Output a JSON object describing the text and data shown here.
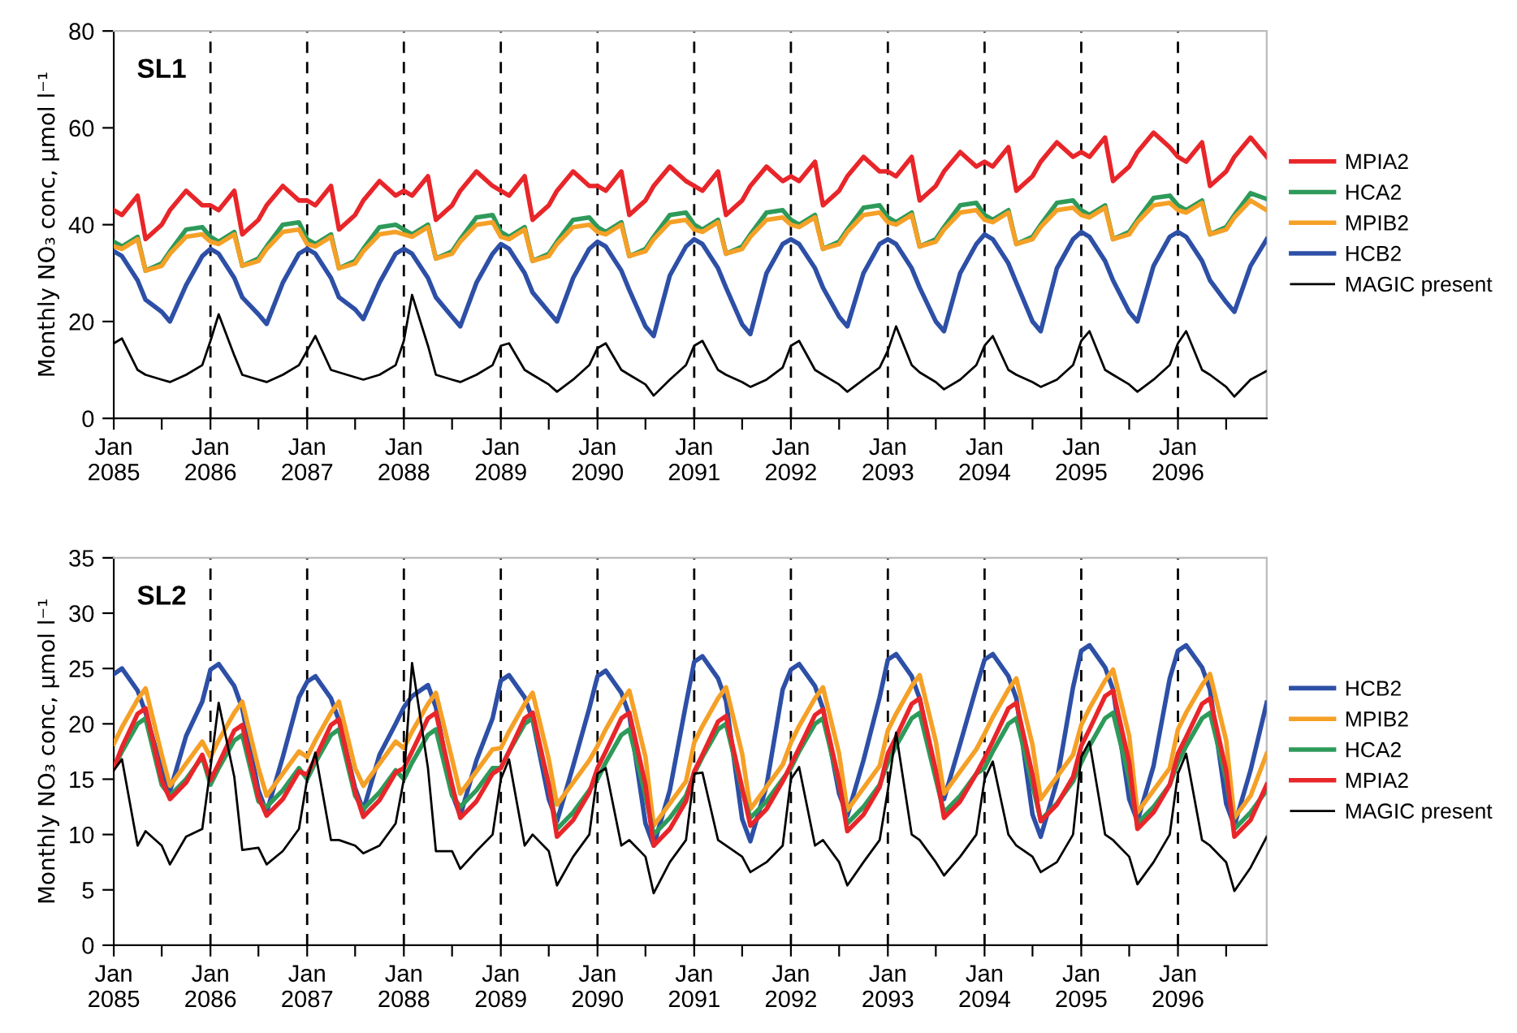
{
  "chart_data": [
    {
      "type": "line",
      "title": "SL1",
      "ylabel": "Monthly NO₃ conc, µmol l⁻¹",
      "legend": "right",
      "grid": false,
      "marker": "none",
      "line_style": "solid",
      "xlim": [
        "2085-01",
        "2096-12"
      ],
      "ylim": [
        0,
        80
      ],
      "yticks": [
        0,
        20,
        40,
        60,
        80
      ],
      "xticks": [
        {
          "value": "2085-01",
          "label": "Jan\n2085"
        },
        {
          "value": "2085-07",
          "label": null
        },
        {
          "value": "2086-01",
          "label": "Jan\n2086"
        },
        {
          "value": "2086-07",
          "label": null
        },
        {
          "value": "2087-01",
          "label": "Jan\n2087"
        },
        {
          "value": "2087-07",
          "label": null
        },
        {
          "value": "2088-01",
          "label": "Jan\n2088"
        },
        {
          "value": "2088-07",
          "label": null
        },
        {
          "value": "2089-01",
          "label": "Jan\n2089"
        },
        {
          "value": "2089-07",
          "label": null
        },
        {
          "value": "2090-01",
          "label": "Jan\n2090"
        },
        {
          "value": "2090-07",
          "label": null
        },
        {
          "value": "2091-01",
          "label": "Jan\n2091"
        },
        {
          "value": "2091-07",
          "label": null
        },
        {
          "value": "2092-01",
          "label": "Jan\n2092"
        },
        {
          "value": "2092-07",
          "label": null
        },
        {
          "value": "2093-01",
          "label": "Jan\n2093"
        },
        {
          "value": "2093-07",
          "label": null
        },
        {
          "value": "2094-01",
          "label": "Jan\n2094"
        },
        {
          "value": "2094-07",
          "label": null
        },
        {
          "value": "2095-01",
          "label": "Jan\n2095"
        },
        {
          "value": "2095-07",
          "label": null
        },
        {
          "value": "2096-01",
          "label": "Jan\n2096"
        },
        {
          "value": "2096-07",
          "label": null
        }
      ],
      "ref_lines": [
        {
          "axis": "x",
          "value": "2086-01",
          "color": "#000000",
          "line_style": "dashed"
        },
        {
          "axis": "x",
          "value": "2087-01",
          "color": "#000000",
          "line_style": "dashed"
        },
        {
          "axis": "x",
          "value": "2088-01",
          "color": "#000000",
          "line_style": "dashed"
        },
        {
          "axis": "x",
          "value": "2089-01",
          "color": "#000000",
          "line_style": "dashed"
        },
        {
          "axis": "x",
          "value": "2090-01",
          "color": "#000000",
          "line_style": "dashed"
        },
        {
          "axis": "x",
          "value": "2091-01",
          "color": "#000000",
          "line_style": "dashed"
        },
        {
          "axis": "x",
          "value": "2092-01",
          "color": "#000000",
          "line_style": "dashed"
        },
        {
          "axis": "x",
          "value": "2093-01",
          "color": "#000000",
          "line_style": "dashed"
        },
        {
          "axis": "x",
          "value": "2094-01",
          "color": "#000000",
          "line_style": "dashed"
        },
        {
          "axis": "x",
          "value": "2095-01",
          "color": "#000000",
          "line_style": "dashed"
        },
        {
          "axis": "x",
          "value": "2096-01",
          "color": "#000000",
          "line_style": "dashed"
        }
      ],
      "x": [
        "2085-01",
        "2085-02",
        "2085-04",
        "2085-05",
        "2085-07",
        "2085-08",
        "2085-10",
        "2085-12",
        "2086-01",
        "2086-02",
        "2086-04",
        "2086-05",
        "2086-07",
        "2086-08",
        "2086-10",
        "2086-12",
        "2087-01",
        "2087-02",
        "2087-04",
        "2087-05",
        "2087-07",
        "2087-08",
        "2087-10",
        "2087-12",
        "2088-01",
        "2088-02",
        "2088-04",
        "2088-05",
        "2088-07",
        "2088-08",
        "2088-10",
        "2088-12",
        "2089-01",
        "2089-02",
        "2089-04",
        "2089-05",
        "2089-07",
        "2089-08",
        "2089-10",
        "2089-12",
        "2090-01",
        "2090-02",
        "2090-04",
        "2090-05",
        "2090-07",
        "2090-08",
        "2090-10",
        "2090-12",
        "2091-01",
        "2091-02",
        "2091-04",
        "2091-05",
        "2091-07",
        "2091-08",
        "2091-10",
        "2091-12",
        "2092-01",
        "2092-02",
        "2092-04",
        "2092-05",
        "2092-07",
        "2092-08",
        "2092-10",
        "2092-12",
        "2093-01",
        "2093-02",
        "2093-04",
        "2093-05",
        "2093-07",
        "2093-08",
        "2093-10",
        "2093-12",
        "2094-01",
        "2094-02",
        "2094-04",
        "2094-05",
        "2094-07",
        "2094-08",
        "2094-10",
        "2094-12",
        "2095-01",
        "2095-02",
        "2095-04",
        "2095-05",
        "2095-07",
        "2095-08",
        "2095-10",
        "2095-12",
        "2096-01",
        "2096-02",
        "2096-04",
        "2096-05",
        "2096-07",
        "2096-08",
        "2096-10",
        "2096-12"
      ],
      "series": [
        {
          "name": "MPIA2",
          "color": "#e8262a",
          "values": [
            43,
            42,
            46,
            37,
            40,
            43,
            47,
            44,
            44,
            43,
            47,
            38,
            41,
            44,
            48,
            45,
            45,
            44,
            48,
            39,
            42,
            45,
            49,
            46,
            47,
            46,
            50,
            41,
            44,
            47,
            51,
            48,
            47,
            46,
            50,
            41,
            44,
            47,
            51,
            48,
            48,
            47,
            51,
            42,
            45,
            48,
            52,
            49,
            48,
            47,
            51,
            42,
            45,
            48,
            52,
            49,
            50,
            49,
            53,
            44,
            47,
            50,
            54,
            51,
            51,
            50,
            54,
            45,
            48,
            51,
            55,
            52,
            53,
            52,
            56,
            47,
            50,
            53,
            57,
            54,
            55,
            54,
            58,
            49,
            52,
            55,
            59,
            56,
            54,
            53,
            57,
            48,
            51,
            54,
            58,
            54
          ]
        },
        {
          "name": "HCA2",
          "color": "#2e9a5a",
          "values": [
            36.5,
            35.5,
            37.5,
            30.5,
            32,
            34.5,
            39,
            39.5,
            37.5,
            36.5,
            38.5,
            31.5,
            33,
            35.5,
            40,
            40.5,
            37,
            36,
            38,
            31,
            32.5,
            35,
            39.5,
            40,
            39,
            38,
            40,
            33,
            34.5,
            37,
            41.5,
            42,
            38.5,
            37.5,
            39.5,
            32.5,
            34,
            36.5,
            41,
            41.5,
            39.5,
            38.5,
            40.5,
            33.5,
            35,
            37.5,
            42,
            42.5,
            40,
            39,
            41,
            34,
            35.5,
            38,
            42.5,
            43,
            41,
            40,
            42,
            35,
            36.5,
            39,
            43.5,
            44,
            41.5,
            40.5,
            42.5,
            35.5,
            37,
            39.5,
            44,
            44.5,
            42,
            41,
            43,
            36,
            37.5,
            40,
            44.5,
            45,
            43,
            42,
            44,
            37,
            38.5,
            41,
            45.5,
            46,
            44,
            43,
            45,
            38,
            39.5,
            42,
            46.5,
            45.3
          ]
        },
        {
          "name": "MPIB2",
          "color": "#f5a026",
          "values": [
            35.5,
            35,
            37,
            30.5,
            31.5,
            34,
            37.5,
            38,
            36.5,
            36,
            38,
            31.5,
            32.5,
            35,
            38.5,
            39,
            36,
            35.5,
            37.5,
            31,
            32,
            34.5,
            38,
            38.5,
            38,
            37.5,
            39.5,
            33,
            34,
            36.5,
            40,
            40.5,
            37.5,
            37,
            39,
            32.5,
            33.5,
            36,
            39.5,
            40,
            38.5,
            38,
            40,
            33.5,
            34.5,
            37,
            40.5,
            41,
            39,
            38.5,
            40.5,
            34,
            35,
            37.5,
            41,
            41.5,
            40,
            39.5,
            41.5,
            35,
            36,
            38.5,
            42,
            42.5,
            40.5,
            40,
            42,
            35.5,
            36.5,
            39,
            42.5,
            43,
            41,
            40.5,
            42.5,
            36,
            37,
            39.5,
            43,
            43.5,
            42,
            41.5,
            43.5,
            37,
            38,
            40.5,
            44,
            44.5,
            43,
            42.5,
            44.5,
            38,
            39,
            41.5,
            45,
            43
          ]
        },
        {
          "name": "HCB2",
          "color": "#2d4fa6",
          "values": [
            34.5,
            33.5,
            28.5,
            24.5,
            22,
            20,
            27.5,
            33.5,
            35,
            34,
            29,
            25,
            21.5,
            19.5,
            28,
            34,
            35,
            34,
            29,
            25,
            22.5,
            20.5,
            28,
            34,
            35,
            34,
            29,
            25,
            21,
            19,
            28,
            34,
            36,
            35,
            30,
            26,
            22,
            20,
            29,
            35,
            36.5,
            35.5,
            30.5,
            26.5,
            19,
            17,
            29.5,
            35.5,
            37,
            36,
            31,
            27,
            19.4,
            17.4,
            30,
            36,
            37,
            36,
            31,
            27,
            21,
            19,
            30,
            36,
            37,
            36,
            31,
            27,
            20,
            18,
            30,
            36,
            38,
            37,
            32,
            28,
            20,
            18,
            31,
            37,
            38.5,
            37.5,
            32.5,
            28.5,
            22,
            20,
            31.5,
            37.5,
            38.5,
            37.5,
            32.5,
            28.5,
            24,
            22,
            31.5,
            37
          ]
        },
        {
          "name": "MAGIC present",
          "color": "#000000",
          "values": [
            15.5,
            16.5,
            10,
            9,
            8,
            7.5,
            9,
            11,
            16,
            21.5,
            13,
            9,
            8,
            7.5,
            9,
            11,
            14,
            17,
            10,
            9.5,
            8.5,
            8,
            9,
            11,
            16,
            25.5,
            15,
            9,
            8,
            7.5,
            9,
            11,
            15,
            15.5,
            10,
            9,
            7,
            5.5,
            8,
            11,
            14.5,
            15.5,
            10,
            9,
            7,
            4.7,
            8,
            11,
            15,
            16,
            10,
            9,
            7.5,
            6.5,
            8,
            10.5,
            15,
            16,
            10,
            9,
            7,
            5.5,
            8,
            10.5,
            14,
            19,
            11,
            9.5,
            7.5,
            6,
            8,
            11,
            15,
            17,
            10,
            9,
            7.5,
            6.5,
            8,
            11,
            16,
            18,
            10,
            9,
            7,
            5.5,
            8,
            11,
            15.5,
            18,
            10,
            9,
            6.5,
            4.5,
            8,
            9.8
          ]
        }
      ]
    },
    {
      "type": "line",
      "title": "SL2",
      "ylabel": "Monthly NO₃ conc, µmol l⁻¹",
      "legend": "right",
      "grid": false,
      "marker": "none",
      "line_style": "solid",
      "xlim": [
        "2085-01",
        "2096-12"
      ],
      "ylim": [
        0,
        35
      ],
      "yticks": [
        0,
        5,
        10,
        15,
        20,
        25,
        30,
        35
      ],
      "xticks": [
        {
          "value": "2085-01",
          "label": "Jan\n2085"
        },
        {
          "value": "2085-07",
          "label": null
        },
        {
          "value": "2086-01",
          "label": "Jan\n2086"
        },
        {
          "value": "2086-07",
          "label": null
        },
        {
          "value": "2087-01",
          "label": "Jan\n2087"
        },
        {
          "value": "2087-07",
          "label": null
        },
        {
          "value": "2088-01",
          "label": "Jan\n2088"
        },
        {
          "value": "2088-07",
          "label": null
        },
        {
          "value": "2089-01",
          "label": "Jan\n2089"
        },
        {
          "value": "2089-07",
          "label": null
        },
        {
          "value": "2090-01",
          "label": "Jan\n2090"
        },
        {
          "value": "2090-07",
          "label": null
        },
        {
          "value": "2091-01",
          "label": "Jan\n2091"
        },
        {
          "value": "2091-07",
          "label": null
        },
        {
          "value": "2092-01",
          "label": "Jan\n2092"
        },
        {
          "value": "2092-07",
          "label": null
        },
        {
          "value": "2093-01",
          "label": "Jan\n2093"
        },
        {
          "value": "2093-07",
          "label": null
        },
        {
          "value": "2094-01",
          "label": "Jan\n2094"
        },
        {
          "value": "2094-07",
          "label": null
        },
        {
          "value": "2095-01",
          "label": "Jan\n2095"
        },
        {
          "value": "2095-07",
          "label": null
        },
        {
          "value": "2096-01",
          "label": "Jan\n2096"
        },
        {
          "value": "2096-07",
          "label": null
        }
      ],
      "ref_lines": [
        {
          "axis": "x",
          "value": "2086-01",
          "color": "#000000",
          "line_style": "dashed"
        },
        {
          "axis": "x",
          "value": "2087-01",
          "color": "#000000",
          "line_style": "dashed"
        },
        {
          "axis": "x",
          "value": "2088-01",
          "color": "#000000",
          "line_style": "dashed"
        },
        {
          "axis": "x",
          "value": "2089-01",
          "color": "#000000",
          "line_style": "dashed"
        },
        {
          "axis": "x",
          "value": "2090-01",
          "color": "#000000",
          "line_style": "dashed"
        },
        {
          "axis": "x",
          "value": "2091-01",
          "color": "#000000",
          "line_style": "dashed"
        },
        {
          "axis": "x",
          "value": "2092-01",
          "color": "#000000",
          "line_style": "dashed"
        },
        {
          "axis": "x",
          "value": "2093-01",
          "color": "#000000",
          "line_style": "dashed"
        },
        {
          "axis": "x",
          "value": "2094-01",
          "color": "#000000",
          "line_style": "dashed"
        },
        {
          "axis": "x",
          "value": "2095-01",
          "color": "#000000",
          "line_style": "dashed"
        },
        {
          "axis": "x",
          "value": "2096-01",
          "color": "#000000",
          "line_style": "dashed"
        }
      ],
      "x": [
        "2085-01",
        "2085-02",
        "2085-04",
        "2085-05",
        "2085-07",
        "2085-08",
        "2085-10",
        "2085-12",
        "2086-01",
        "2086-02",
        "2086-04",
        "2086-05",
        "2086-07",
        "2086-08",
        "2086-10",
        "2086-12",
        "2087-01",
        "2087-02",
        "2087-04",
        "2087-05",
        "2087-07",
        "2087-08",
        "2087-10",
        "2087-12",
        "2088-01",
        "2088-02",
        "2088-04",
        "2088-05",
        "2088-07",
        "2088-08",
        "2088-10",
        "2088-12",
        "2089-01",
        "2089-02",
        "2089-04",
        "2089-05",
        "2089-07",
        "2089-08",
        "2089-10",
        "2089-12",
        "2090-01",
        "2090-02",
        "2090-04",
        "2090-05",
        "2090-07",
        "2090-08",
        "2090-10",
        "2090-12",
        "2091-01",
        "2091-02",
        "2091-04",
        "2091-05",
        "2091-07",
        "2091-08",
        "2091-10",
        "2091-12",
        "2092-01",
        "2092-02",
        "2092-04",
        "2092-05",
        "2092-07",
        "2092-08",
        "2092-10",
        "2092-12",
        "2093-01",
        "2093-02",
        "2093-04",
        "2093-05",
        "2093-07",
        "2093-08",
        "2093-10",
        "2093-12",
        "2094-01",
        "2094-02",
        "2094-04",
        "2094-05",
        "2094-07",
        "2094-08",
        "2094-10",
        "2094-12",
        "2095-01",
        "2095-02",
        "2095-04",
        "2095-05",
        "2095-07",
        "2095-08",
        "2095-10",
        "2095-12",
        "2096-01",
        "2096-02",
        "2096-04",
        "2096-05",
        "2096-07",
        "2096-08",
        "2096-10",
        "2096-12"
      ],
      "series": [
        {
          "name": "HCB2",
          "color": "#2d4fa6",
          "values": [
            24.5,
            25,
            23,
            21,
            15.9,
            13.9,
            18.9,
            22,
            24.9,
            25.4,
            23.4,
            21.4,
            14,
            12,
            17,
            22.4,
            23.8,
            24.3,
            22.3,
            20.3,
            14.2,
            12.2,
            17.2,
            20,
            21.5,
            22.5,
            23.5,
            21.5,
            13.7,
            11.7,
            16.7,
            20.5,
            23.9,
            24.4,
            22.4,
            20.4,
            13.2,
            11.2,
            16.2,
            21.4,
            24.3,
            24.8,
            22.8,
            20.8,
            11,
            9,
            14,
            21.8,
            25.6,
            26.1,
            24.1,
            22.1,
            11.4,
            9.4,
            14.4,
            23.1,
            24.9,
            25.4,
            23.4,
            21.4,
            13.7,
            11.7,
            16.7,
            22.4,
            25.8,
            26.3,
            24.3,
            22.3,
            15.2,
            13.2,
            18.2,
            23.3,
            25.8,
            26.3,
            24.3,
            22.3,
            11.8,
            9.8,
            14.8,
            23.3,
            26.6,
            27.1,
            25.1,
            23.1,
            13.2,
            11.2,
            16.2,
            24.1,
            26.6,
            27.1,
            25.1,
            23.1,
            12.8,
            10.8,
            15.8,
            21.9
          ]
        },
        {
          "name": "MPIB2",
          "color": "#f5a026",
          "values": [
            18.2,
            19.7,
            22.2,
            23.2,
            17.2,
            14.4,
            16.4,
            18.4,
            17,
            18.5,
            21,
            22,
            16,
            13.5,
            15.5,
            17.5,
            17,
            18.5,
            21,
            22,
            16,
            14.4,
            16.4,
            18.4,
            17.8,
            19.3,
            21.8,
            22.8,
            16.8,
            13.7,
            15.7,
            17.7,
            17.8,
            19.3,
            21.8,
            22.8,
            16.8,
            12.7,
            14.7,
            16.7,
            18,
            19.5,
            22,
            23,
            17,
            10.8,
            12.8,
            14.8,
            18.3,
            19.8,
            22.3,
            23.3,
            17.3,
            12.3,
            14.3,
            16.3,
            18.3,
            19.8,
            22.3,
            23.3,
            17.3,
            12.2,
            14.2,
            16.2,
            19.4,
            20.9,
            23.4,
            24.4,
            18.4,
            13.7,
            15.7,
            17.7,
            19.1,
            20.6,
            23.1,
            24.1,
            18.1,
            13.2,
            15.2,
            17.2,
            19.9,
            21.4,
            23.9,
            24.9,
            18.9,
            12,
            14,
            16,
            19.5,
            21,
            23.5,
            24.5,
            18.5,
            11.5,
            13.5,
            17.3
          ]
        },
        {
          "name": "HCA2",
          "color": "#2e9a5a",
          "values": [
            16,
            17.5,
            20,
            20.5,
            14.5,
            13.5,
            15,
            17,
            14.5,
            16,
            18.5,
            19,
            13,
            12.5,
            14,
            16,
            15,
            16.5,
            19,
            19.5,
            13.5,
            12.3,
            13.8,
            15.8,
            15,
            16.5,
            19,
            19.5,
            13.5,
            12.5,
            14,
            16,
            16,
            17.5,
            20,
            20.5,
            14.5,
            10.5,
            12,
            14,
            15,
            16.5,
            19,
            19.5,
            13.5,
            10,
            11.5,
            13.5,
            15.5,
            17,
            19.5,
            20,
            14,
            11.5,
            13,
            15,
            16,
            17.5,
            20,
            20.5,
            14.5,
            11,
            12.5,
            14.5,
            16.5,
            18,
            20.5,
            21,
            15,
            12,
            13.5,
            15.5,
            16,
            17.5,
            20,
            20.5,
            14.5,
            11.3,
            12.8,
            14.8,
            16.5,
            18,
            20.5,
            21,
            15,
            11,
            12.5,
            14.5,
            16.5,
            18,
            20.5,
            21,
            15,
            10.5,
            12,
            14
          ]
        },
        {
          "name": "MPIA2",
          "color": "#e8262a",
          "values": [
            16,
            17.9,
            20.9,
            21.4,
            14.9,
            13.2,
            14.7,
            17.2,
            14.9,
            16.4,
            19.4,
            19.9,
            13.4,
            11.7,
            13.2,
            15.7,
            15.4,
            16.9,
            19.9,
            20.4,
            13.9,
            11.6,
            13.1,
            15.6,
            16,
            17.5,
            20.5,
            21,
            14.5,
            11.5,
            13,
            15.5,
            16,
            17.5,
            20.5,
            21,
            14.5,
            9.8,
            11.3,
            13.8,
            16,
            17.5,
            20.5,
            21,
            14.5,
            9,
            10.5,
            13,
            15.7,
            17.2,
            20.2,
            20.7,
            14.2,
            10.8,
            12.3,
            14.8,
            16.3,
            17.8,
            20.8,
            21.3,
            14.8,
            10.3,
            11.8,
            14.3,
            17.3,
            18.8,
            21.8,
            22.3,
            15.8,
            11.5,
            13,
            15.5,
            16.9,
            18.4,
            21.4,
            21.9,
            15.4,
            11.2,
            12.7,
            15.2,
            18,
            19.5,
            22.5,
            23,
            16.5,
            10.5,
            12,
            14.5,
            17.3,
            18.8,
            21.8,
            22.3,
            15.8,
            9.8,
            11.3,
            14.5
          ]
        },
        {
          "name": "MAGIC present",
          "color": "#000000",
          "values": [
            15.8,
            16.8,
            9,
            10.3,
            9,
            7.3,
            9.8,
            10.5,
            16,
            21.9,
            15.2,
            8.6,
            8.8,
            7.3,
            8.5,
            10.5,
            15,
            17.4,
            9.5,
            9.5,
            9,
            8.3,
            9,
            11,
            15,
            25.5,
            16,
            8.5,
            8.5,
            6.9,
            8.5,
            10,
            15,
            16.8,
            9,
            10,
            8.5,
            5.4,
            8,
            10,
            15.5,
            16,
            9,
            9.5,
            8,
            4.7,
            7.5,
            9.5,
            15.5,
            15.6,
            9.5,
            9,
            8,
            6.6,
            7.5,
            9,
            15,
            16.1,
            9,
            9.5,
            7.5,
            5.4,
            7.5,
            9.5,
            14,
            19.2,
            10,
            9.5,
            7.5,
            6.3,
            8,
            10,
            15,
            16.6,
            10,
            9,
            8,
            6.6,
            7.5,
            10,
            17,
            18.4,
            10,
            9.5,
            8,
            5.5,
            7.5,
            10,
            15.5,
            17.3,
            9.5,
            9,
            7.5,
            4.9,
            7,
            9.8
          ]
        }
      ]
    }
  ]
}
